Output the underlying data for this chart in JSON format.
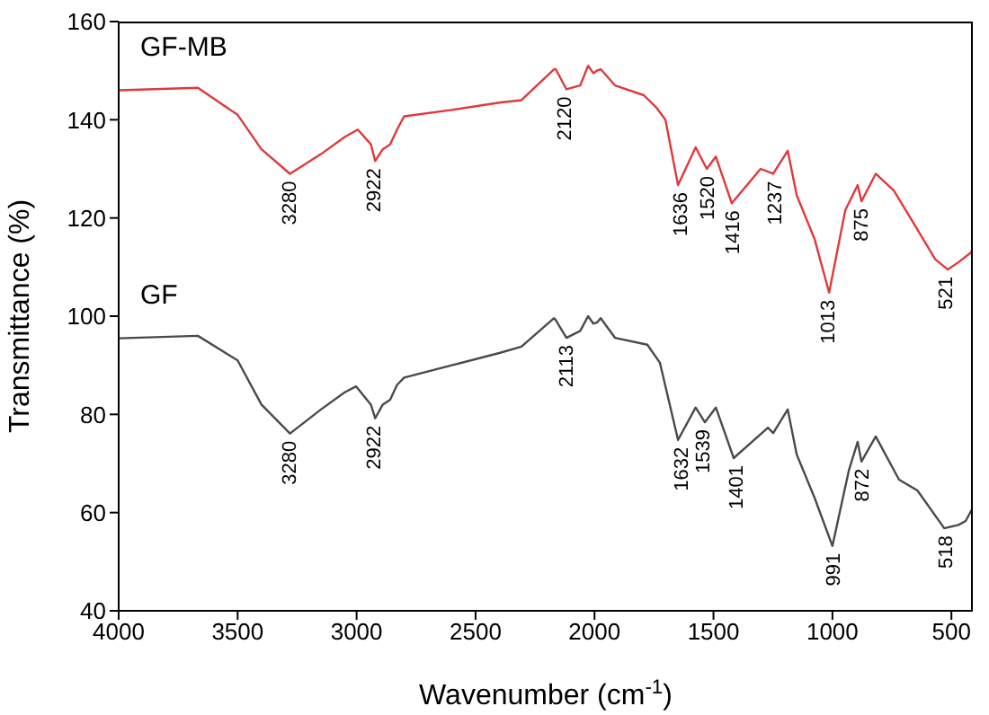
{
  "chart_data": {
    "type": "line",
    "xlabel": "Wavenumber (cm$^{-1}$)",
    "ylabel": "Transmittance (%)",
    "xlim": [
      4000,
      410
    ],
    "xticks": [
      4000,
      3500,
      3000,
      2500,
      2000,
      1500,
      1000,
      500
    ],
    "ylim": [
      40,
      160
    ],
    "yticks": [
      40,
      60,
      80,
      100,
      120,
      140,
      160
    ],
    "grid": false,
    "legend": false,
    "marker": "none",
    "line_style": "solid",
    "series": [
      {
        "name": "GF-MB",
        "color": "#e0393b",
        "x": [
          4000,
          3667,
          3500,
          3400,
          3280,
          3150,
          3050,
          2995,
          2940,
          2922,
          2890,
          2859,
          2830,
          2800,
          2600,
          2400,
          2307,
          2170,
          2163,
          2118,
          2060,
          2027,
          2005,
          1990,
          1974,
          1914,
          1793,
          1740,
          1702,
          1649,
          1575,
          1528,
          1490,
          1423,
          1302,
          1249,
          1188,
          1150,
          1075,
          1014,
          946,
          894,
          878,
          818,
          742,
          667,
          568,
          515,
          470,
          417,
          410
        ],
        "values": [
          146,
          146.5,
          141,
          134,
          129,
          133,
          136.5,
          138,
          135,
          131.6,
          134,
          135,
          138,
          140.7,
          142,
          143.5,
          144,
          150.3,
          150.3,
          146.2,
          147,
          151,
          149.5,
          150,
          150.3,
          147,
          145,
          142.5,
          140,
          126.7,
          134.4,
          130,
          132.5,
          123,
          130,
          129,
          133.7,
          124.6,
          115.7,
          104.8,
          121.6,
          126.7,
          123.4,
          129,
          125.6,
          119.6,
          111.6,
          109.5,
          111,
          113,
          114
        ]
      },
      {
        "name": "GF",
        "color": "#4a4a4a",
        "x": [
          4000,
          3667,
          3500,
          3400,
          3280,
          3150,
          3050,
          3002,
          2940,
          2922,
          2890,
          2859,
          2830,
          2800,
          2600,
          2400,
          2307,
          2170,
          2163,
          2118,
          2060,
          2027,
          2005,
          1990,
          1974,
          1914,
          1778,
          1725,
          1649,
          1575,
          1536,
          1490,
          1415,
          1271,
          1249,
          1188,
          1150,
          1075,
          1000,
          931,
          894,
          878,
          818,
          720,
          643,
          530,
          470,
          440,
          410
        ],
        "values": [
          95.5,
          96,
          91,
          82,
          76.1,
          81,
          84.5,
          85.7,
          82,
          79.2,
          82,
          83,
          86,
          87.5,
          90,
          92.5,
          93.8,
          99.6,
          99.2,
          95.6,
          97,
          100,
          98.5,
          98.7,
          99.6,
          95.6,
          94.2,
          90.5,
          74.8,
          81.4,
          78.4,
          81.4,
          71.1,
          77.3,
          76.2,
          81,
          71.8,
          63,
          53.2,
          68.6,
          74.4,
          70.4,
          75.5,
          66.7,
          64.5,
          56.8,
          57.5,
          58.3,
          61
        ]
      }
    ],
    "annotations": [
      {
        "text": "3280",
        "x": 3280,
        "y": 129
      },
      {
        "text": "2922",
        "x": 2922,
        "y": 131.6
      },
      {
        "text": "2120",
        "x": 2120,
        "y": 146.2
      },
      {
        "text": "1636",
        "x": 1636,
        "y": 126.7
      },
      {
        "text": "1520",
        "x": 1520,
        "y": 130
      },
      {
        "text": "1416",
        "x": 1416,
        "y": 123
      },
      {
        "text": "1237",
        "x": 1237,
        "y": 129
      },
      {
        "text": "1013",
        "x": 1013,
        "y": 104.8
      },
      {
        "text": "875",
        "x": 875,
        "y": 123.4
      },
      {
        "text": "521",
        "x": 521,
        "y": 109.5
      },
      {
        "text": "3280",
        "x": 3280,
        "y": 76.1
      },
      {
        "text": "2922",
        "x": 2922,
        "y": 79.2
      },
      {
        "text": "2113",
        "x": 2113,
        "y": 95.6
      },
      {
        "text": "1632",
        "x": 1632,
        "y": 74.8
      },
      {
        "text": "1539",
        "x": 1539,
        "y": 78.4
      },
      {
        "text": "1401",
        "x": 1401,
        "y": 71.1
      },
      {
        "text": "991",
        "x": 991,
        "y": 53.2
      },
      {
        "text": "872",
        "x": 872,
        "y": 70.4
      },
      {
        "text": "518",
        "x": 518,
        "y": 56.8
      }
    ]
  }
}
